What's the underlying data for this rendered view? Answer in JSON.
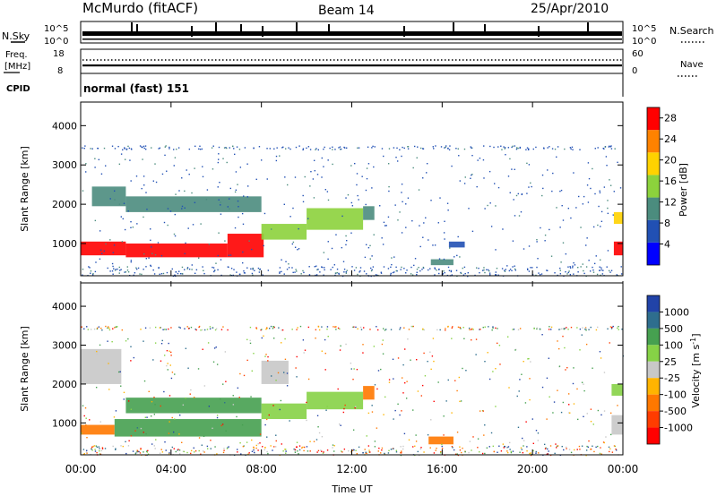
{
  "header": {
    "station": "McMurdo (fitACF)",
    "beam": "Beam 14",
    "date": "25/Apr/2010"
  },
  "top_panels": {
    "nsky_label": "N.Sky",
    "nsearch_label": "N.Search",
    "freq_label_line1": "Freq.",
    "freq_label_line2": "[MHz]",
    "nave_label": "Nave",
    "cpid_label": "CPID",
    "cpid_value": "normal (fast) 151",
    "noise_left_ticks": [
      "10^5",
      "10^0"
    ],
    "noise_right_ticks": [
      "10^5",
      "10^0"
    ],
    "freq_left_ticks": [
      "18",
      "8"
    ],
    "nave_right_ticks": [
      "60",
      "0"
    ],
    "noise_scale": "log",
    "freq_range_mhz": [
      8,
      18
    ],
    "nave_range": [
      0,
      60
    ]
  },
  "chart_data": [
    {
      "type": "heatmap",
      "title": "",
      "xlabel": "",
      "ylabel": "Slant Range [km]",
      "xlim_hours_ut": [
        0,
        24
      ],
      "ylim_km": [
        180,
        4600
      ],
      "y_ticks": [
        "1000",
        "2000",
        "3000",
        "4000"
      ],
      "colorbar": {
        "label": "Power [dB]",
        "ticks": [
          "4",
          "8",
          "12",
          "16",
          "20",
          "24",
          "28"
        ],
        "range": [
          0,
          30
        ],
        "colors": [
          "#0000ff",
          "#2150b4",
          "#4b8c7e",
          "#8cd23c",
          "#ffd200",
          "#ff8200",
          "#ff0000"
        ]
      },
      "regions": [
        {
          "t0": 0.0,
          "t1": 2.0,
          "r0": 700,
          "r1": 1050,
          "value": 28
        },
        {
          "t0": 2.0,
          "t1": 6.5,
          "r0": 650,
          "r1": 1000,
          "value": 27
        },
        {
          "t0": 6.5,
          "t1": 8.1,
          "r0": 650,
          "r1": 1250,
          "value": 28
        },
        {
          "t0": 8.0,
          "t1": 10.0,
          "r0": 1100,
          "r1": 1500,
          "value": 17
        },
        {
          "t0": 10.0,
          "t1": 12.5,
          "r0": 1350,
          "r1": 1900,
          "value": 16
        },
        {
          "t0": 12.5,
          "t1": 13.0,
          "r0": 1600,
          "r1": 1950,
          "value": 12
        },
        {
          "t0": 0.5,
          "t1": 2.0,
          "r0": 1950,
          "r1": 2450,
          "value": 12
        },
        {
          "t0": 2.0,
          "t1": 8.0,
          "r0": 1800,
          "r1": 2200,
          "value": 9
        },
        {
          "t0": 15.5,
          "t1": 16.5,
          "r0": 450,
          "r1": 600,
          "value": 10
        },
        {
          "t0": 16.3,
          "t1": 17.0,
          "r0": 900,
          "r1": 1050,
          "value": 8
        },
        {
          "t0": 23.6,
          "t1": 24.0,
          "r0": 700,
          "r1": 1050,
          "value": 27
        },
        {
          "t0": 23.6,
          "t1": 24.0,
          "r0": 1500,
          "r1": 1800,
          "value": 18
        }
      ]
    },
    {
      "type": "heatmap",
      "title": "",
      "xlabel": "Time UT",
      "ylabel": "Slant Range [km]",
      "xlim_hours_ut": [
        0,
        24
      ],
      "ylim_km": [
        180,
        4600
      ],
      "x_ticks": [
        "00:00",
        "04:00",
        "08:00",
        "12:00",
        "16:00",
        "20:00",
        "00:00"
      ],
      "y_ticks": [
        "1000",
        "2000",
        "3000",
        "4000"
      ],
      "colorbar": {
        "label": "Velocity [m s-1]",
        "label_main": "Velocity  [m s",
        "label_sup": "-1",
        "label_end": "]",
        "ticks": [
          "1000",
          "500",
          "100",
          "25",
          "-25",
          "-100",
          "-500",
          "-1000"
        ],
        "range": [
          -1000,
          1000
        ],
        "colors": [
          "#2143a8",
          "#2e6e8e",
          "#46a050",
          "#86d246",
          "#c8c8c8",
          "#ffb400",
          "#ff7800",
          "#ff3c00",
          "#ff0000"
        ]
      },
      "regions": [
        {
          "t0": 0.0,
          "t1": 1.5,
          "r0": 700,
          "r1": 950,
          "value": -150
        },
        {
          "t0": 1.5,
          "t1": 8.0,
          "r0": 650,
          "r1": 1100,
          "value": 120
        },
        {
          "t0": 2.0,
          "t1": 8.0,
          "r0": 1250,
          "r1": 1650,
          "value": 130
        },
        {
          "t0": 8.0,
          "t1": 10.0,
          "r0": 1100,
          "r1": 1500,
          "value": 80
        },
        {
          "t0": 10.0,
          "t1": 12.5,
          "r0": 1350,
          "r1": 1800,
          "value": 90
        },
        {
          "t0": 12.5,
          "t1": 13.0,
          "r0": 1600,
          "r1": 1950,
          "value": -200
        },
        {
          "t0": 0.0,
          "t1": 1.8,
          "r0": 2000,
          "r1": 2900,
          "value": 0
        },
        {
          "t0": 8.0,
          "t1": 9.2,
          "r0": 2000,
          "r1": 2600,
          "value": 0
        },
        {
          "t0": 15.4,
          "t1": 16.5,
          "r0": 450,
          "r1": 650,
          "value": -300
        },
        {
          "t0": 23.5,
          "t1": 24.0,
          "r0": 700,
          "r1": 1200,
          "value": 0
        },
        {
          "t0": 23.5,
          "t1": 24.0,
          "r0": 1700,
          "r1": 2000,
          "value": 60
        }
      ]
    }
  ]
}
